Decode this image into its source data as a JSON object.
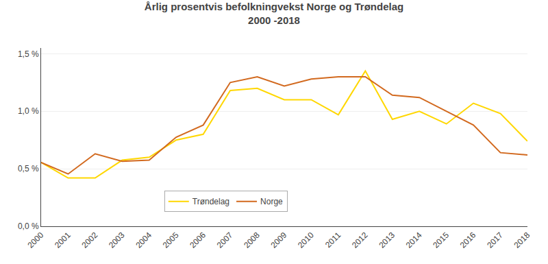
{
  "chart_data": {
    "type": "line",
    "title": "Årlig prosentvis befolkningvekst Norge og Trøndelag",
    "subtitle": "2000 -2018",
    "x": [
      2000,
      2001,
      2002,
      2003,
      2004,
      2005,
      2006,
      2007,
      2008,
      2009,
      2010,
      2011,
      2012,
      2013,
      2014,
      2015,
      2016,
      2017,
      2018
    ],
    "series": [
      {
        "name": "Trøndelag",
        "color": "#FFD700",
        "values": [
          0.555,
          0.42,
          0.42,
          0.575,
          0.6,
          0.75,
          0.8,
          1.18,
          1.2,
          1.1,
          1.1,
          0.97,
          1.35,
          0.93,
          1.0,
          0.89,
          1.07,
          0.98,
          0.74
        ]
      },
      {
        "name": "Norge",
        "color": "#D2691E",
        "values": [
          0.555,
          0.455,
          0.63,
          0.565,
          0.575,
          0.775,
          0.88,
          1.25,
          1.3,
          1.22,
          1.28,
          1.3,
          1.3,
          1.14,
          1.12,
          1.0,
          0.88,
          0.64,
          0.62
        ]
      }
    ],
    "xlim": [
      2000,
      2018
    ],
    "xticks": [
      2000,
      2001,
      2002,
      2003,
      2004,
      2005,
      2006,
      2007,
      2008,
      2009,
      2010,
      2011,
      2012,
      2013,
      2014,
      2015,
      2016,
      2017,
      2018
    ],
    "ylim": [
      0.0,
      1.55
    ],
    "yticks": [
      {
        "value": 0.0,
        "label": "0,0 %"
      },
      {
        "value": 0.5,
        "label": "0,5 %"
      },
      {
        "value": 1.0,
        "label": "1,0 %"
      },
      {
        "value": 1.5,
        "label": "1,5 %"
      }
    ],
    "grid": true,
    "legend": "lower center"
  }
}
